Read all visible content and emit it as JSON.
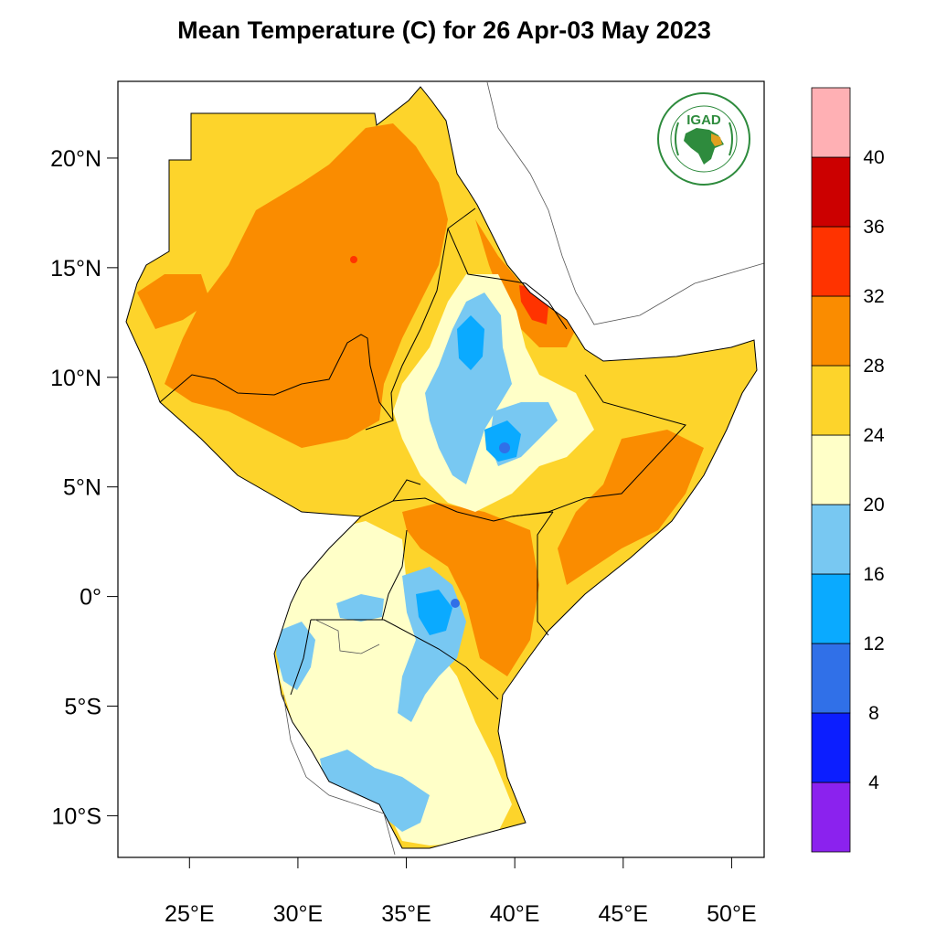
{
  "title": "Mean Temperature (C) for 26 Apr-03 May 2023",
  "map": {
    "lon_range": [
      21.7,
      51.5
    ],
    "lat_range": [
      -11.9,
      23.5
    ],
    "lat_ticks": [
      {
        "value": 20,
        "label": "20°N"
      },
      {
        "value": 15,
        "label": "15°N"
      },
      {
        "value": 10,
        "label": "10°N"
      },
      {
        "value": 5,
        "label": "5°N"
      },
      {
        "value": 0,
        "label": "0°"
      },
      {
        "value": -5,
        "label": "5°S"
      },
      {
        "value": -10,
        "label": "10°S"
      }
    ],
    "lon_ticks": [
      {
        "value": 25,
        "label": "25°E"
      },
      {
        "value": 30,
        "label": "30°E"
      },
      {
        "value": 35,
        "label": "35°E"
      },
      {
        "value": 40,
        "label": "40°E"
      },
      {
        "value": 45,
        "label": "45°E"
      },
      {
        "value": 50,
        "label": "50°E"
      }
    ]
  },
  "logo": {
    "text": "IGAD",
    "ring_text_top": "INTERGOVERNMENTAL AUTHORITY ON DEVELOPMENT",
    "ring_text_bottom": "AUTORITÉ INTERGOUVERNEMENTALE POUR LE DÉVELOPPEMENT",
    "colors": {
      "green": "#2e8b3d",
      "gold": "#e0a020"
    }
  },
  "colorbar": {
    "bins": [
      {
        "color": "#8b22ee"
      },
      {
        "color": "#0c1eff"
      },
      {
        "color": "#3070e8"
      },
      {
        "color": "#0aaaff"
      },
      {
        "color": "#78c8f2"
      },
      {
        "color": "#ffffc8"
      },
      {
        "color": "#fdd42b"
      },
      {
        "color": "#fa8c00"
      },
      {
        "color": "#ff3300"
      },
      {
        "color": "#cc0000"
      },
      {
        "color": "#ffb0b4"
      }
    ],
    "labels": [
      "4",
      "8",
      "12",
      "16",
      "20",
      "24",
      "28",
      "32",
      "36",
      "40"
    ]
  }
}
